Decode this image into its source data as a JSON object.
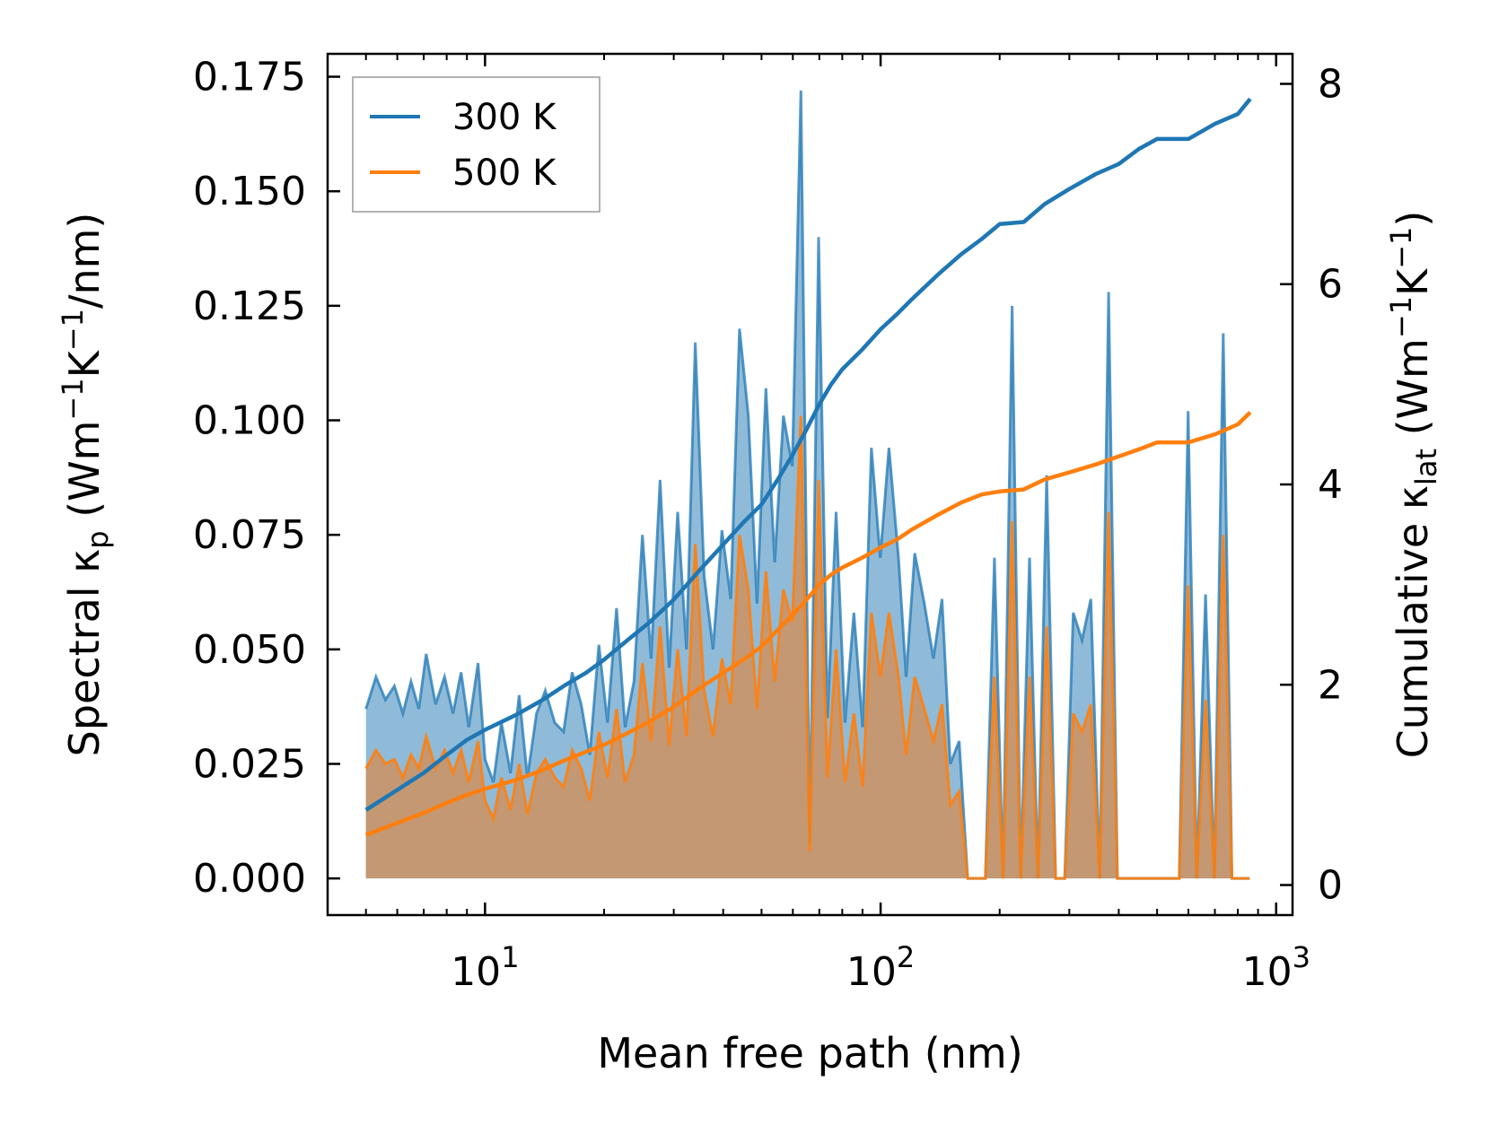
{
  "chart_data": {
    "type": "line",
    "title": "",
    "xlabel": "Mean free path (nm)",
    "ylabel": {
      "pre": "Spectral κ",
      "sub": "p",
      "post": " (Wm",
      "sup1": "−1",
      "mid": "K",
      "sup2": "−1",
      "end": "/nm)"
    },
    "y2label": {
      "pre": "Cumulative κ",
      "sub": "lat",
      "post": " (Wm",
      "sup1": "−1",
      "mid": "K",
      "sup2": "−1",
      "end": ")"
    },
    "xscale": "log",
    "xlim": [
      4.0,
      1100
    ],
    "ylim": [
      -0.008,
      0.18
    ],
    "y2lim": [
      -0.3,
      8.3
    ],
    "x_ticks": [
      {
        "value": 10,
        "base": "10",
        "exp": "1"
      },
      {
        "value": 100,
        "base": "10",
        "exp": "2"
      },
      {
        "value": 1000,
        "base": "10",
        "exp": "3"
      }
    ],
    "y_ticks": [
      {
        "value": 0.0,
        "label": "0.000"
      },
      {
        "value": 0.025,
        "label": "0.025"
      },
      {
        "value": 0.05,
        "label": "0.050"
      },
      {
        "value": 0.075,
        "label": "0.075"
      },
      {
        "value": 0.1,
        "label": "0.100"
      },
      {
        "value": 0.125,
        "label": "0.125"
      },
      {
        "value": 0.15,
        "label": "0.150"
      },
      {
        "value": 0.175,
        "label": "0.175"
      }
    ],
    "y2_ticks": [
      {
        "value": 0,
        "label": "0"
      },
      {
        "value": 2,
        "label": "2"
      },
      {
        "value": 4,
        "label": "4"
      },
      {
        "value": 6,
        "label": "6"
      },
      {
        "value": 8,
        "label": "8"
      }
    ],
    "legend_position": "top-left",
    "spectral_series": [
      {
        "name": "300 K",
        "color": "#1f77b4",
        "fill": "rgba(31,119,180,0.5)",
        "x": [
          5.0,
          5.3,
          5.6,
          5.9,
          6.2,
          6.5,
          6.8,
          7.1,
          7.5,
          7.9,
          8.3,
          8.7,
          9.1,
          9.6,
          10.0,
          10.5,
          11.0,
          11.6,
          12.2,
          12.8,
          13.5,
          14.2,
          15.0,
          15.8,
          16.6,
          17.5,
          18.4,
          19.4,
          20.4,
          21.5,
          22.6,
          23.8,
          25.0,
          26.3,
          27.7,
          29.2,
          30.7,
          32.3,
          34.0,
          35.8,
          37.7,
          39.7,
          41.8,
          44.0,
          46.3,
          48.7,
          51.3,
          54.0,
          56.8,
          59.8,
          62.9,
          66.2,
          69.7,
          73.4,
          77.2,
          81.3,
          85.6,
          90.1,
          94.8,
          99.8,
          105,
          111,
          116,
          122,
          129,
          136,
          143,
          150,
          158,
          166,
          175,
          184,
          194,
          204,
          215,
          226,
          238,
          250,
          263,
          277,
          292,
          307,
          323,
          340,
          358,
          377,
          397,
          418,
          440,
          463,
          488,
          513,
          540,
          569,
          599,
          630,
          663,
          698,
          735,
          773,
          814,
          857
        ],
        "y": [
          0.037,
          0.044,
          0.039,
          0.042,
          0.036,
          0.043,
          0.037,
          0.049,
          0.038,
          0.044,
          0.036,
          0.045,
          0.033,
          0.047,
          0.026,
          0.021,
          0.034,
          0.023,
          0.04,
          0.022,
          0.036,
          0.041,
          0.034,
          0.032,
          0.045,
          0.038,
          0.027,
          0.051,
          0.034,
          0.059,
          0.033,
          0.043,
          0.075,
          0.048,
          0.087,
          0.046,
          0.08,
          0.05,
          0.117,
          0.066,
          0.05,
          0.076,
          0.061,
          0.12,
          0.101,
          0.06,
          0.107,
          0.069,
          0.101,
          0.09,
          0.172,
          0.008,
          0.14,
          0.035,
          0.08,
          0.034,
          0.058,
          0.033,
          0.094,
          0.07,
          0.094,
          0.07,
          0.044,
          0.071,
          0.06,
          0.048,
          0.061,
          0.025,
          0.03,
          0.0,
          0.0,
          0.0,
          0.07,
          0.0,
          0.125,
          0.0,
          0.07,
          0.0,
          0.088,
          0.0,
          0.0,
          0.058,
          0.052,
          0.061,
          0.0,
          0.128,
          0.0,
          0.0,
          0.0,
          0.0,
          0.0,
          0.0,
          0.0,
          0.0,
          0.102,
          0.0,
          0.062,
          0.0,
          0.119,
          0.0,
          0.0,
          0.0
        ]
      },
      {
        "name": "500 K",
        "color": "#ff7f0e",
        "fill": "rgba(206,146,96,0.85)",
        "x": [
          5.0,
          5.3,
          5.6,
          5.9,
          6.2,
          6.5,
          6.8,
          7.1,
          7.5,
          7.9,
          8.3,
          8.7,
          9.1,
          9.6,
          10.0,
          10.5,
          11.0,
          11.6,
          12.2,
          12.8,
          13.5,
          14.2,
          15.0,
          15.8,
          16.6,
          17.5,
          18.4,
          19.4,
          20.4,
          21.5,
          22.6,
          23.8,
          25.0,
          26.3,
          27.7,
          29.2,
          30.7,
          32.3,
          34.0,
          35.8,
          37.7,
          39.7,
          41.8,
          44.0,
          46.3,
          48.7,
          51.3,
          54.0,
          56.8,
          59.8,
          62.9,
          66.2,
          69.7,
          73.4,
          77.2,
          81.3,
          85.6,
          90.1,
          94.8,
          99.8,
          105,
          111,
          116,
          122,
          129,
          136,
          143,
          150,
          158,
          166,
          175,
          184,
          194,
          204,
          215,
          226,
          238,
          250,
          263,
          277,
          292,
          307,
          323,
          340,
          358,
          377,
          397,
          418,
          440,
          463,
          488,
          513,
          540,
          569,
          599,
          630,
          663,
          698,
          735,
          773,
          814,
          857
        ],
        "y": [
          0.024,
          0.028,
          0.025,
          0.026,
          0.022,
          0.027,
          0.024,
          0.031,
          0.024,
          0.028,
          0.023,
          0.028,
          0.021,
          0.03,
          0.017,
          0.013,
          0.022,
          0.015,
          0.025,
          0.014,
          0.023,
          0.026,
          0.022,
          0.02,
          0.028,
          0.024,
          0.017,
          0.032,
          0.022,
          0.037,
          0.021,
          0.027,
          0.047,
          0.03,
          0.055,
          0.029,
          0.05,
          0.031,
          0.073,
          0.041,
          0.031,
          0.048,
          0.038,
          0.075,
          0.063,
          0.037,
          0.067,
          0.043,
          0.063,
          0.056,
          0.101,
          0.006,
          0.087,
          0.022,
          0.05,
          0.021,
          0.036,
          0.02,
          0.058,
          0.044,
          0.058,
          0.044,
          0.027,
          0.044,
          0.037,
          0.03,
          0.038,
          0.016,
          0.019,
          0.0,
          0.0,
          0.0,
          0.044,
          0.0,
          0.078,
          0.0,
          0.044,
          0.0,
          0.055,
          0.0,
          0.0,
          0.036,
          0.032,
          0.038,
          0.0,
          0.08,
          0.0,
          0.0,
          0.0,
          0.0,
          0.0,
          0.0,
          0.0,
          0.0,
          0.064,
          0.0,
          0.039,
          0.0,
          0.075,
          0.0,
          0.0,
          0.0
        ]
      }
    ],
    "cumulative_series": [
      {
        "name": "300 K",
        "color": "#1f77b4",
        "x": [
          5.0,
          6.0,
          7.0,
          8.0,
          9.0,
          10.0,
          12.0,
          14.0,
          16.0,
          18.0,
          20.0,
          23.0,
          26.0,
          30.0,
          35.0,
          40.0,
          45.0,
          50.0,
          55.0,
          60.0,
          65.0,
          70.0,
          75.0,
          80.0,
          90.0,
          100.0,
          110.0,
          120.0,
          140.0,
          160.0,
          180.0,
          200.0,
          230.0,
          260.0,
          300.0,
          350.0,
          400.0,
          450.0,
          500.0,
          600.0,
          700.0,
          800.0,
          860.0
        ],
        "y": [
          0.75,
          0.95,
          1.12,
          1.3,
          1.45,
          1.55,
          1.7,
          1.85,
          2.0,
          2.12,
          2.25,
          2.45,
          2.62,
          2.85,
          3.15,
          3.4,
          3.62,
          3.8,
          4.05,
          4.3,
          4.55,
          4.8,
          5.0,
          5.15,
          5.35,
          5.55,
          5.7,
          5.85,
          6.1,
          6.3,
          6.45,
          6.6,
          6.62,
          6.8,
          6.95,
          7.1,
          7.2,
          7.35,
          7.45,
          7.45,
          7.6,
          7.7,
          7.85
        ]
      },
      {
        "name": "500 K",
        "color": "#ff7f0e",
        "x": [
          5.0,
          6.0,
          7.0,
          8.0,
          9.0,
          10.0,
          12.0,
          14.0,
          16.0,
          18.0,
          20.0,
          23.0,
          26.0,
          30.0,
          35.0,
          40.0,
          45.0,
          50.0,
          55.0,
          60.0,
          65.0,
          70.0,
          75.0,
          80.0,
          90.0,
          100.0,
          110.0,
          120.0,
          140.0,
          160.0,
          180.0,
          200.0,
          230.0,
          260.0,
          300.0,
          350.0,
          400.0,
          450.0,
          500.0,
          600.0,
          700.0,
          800.0,
          860.0
        ],
        "y": [
          0.5,
          0.62,
          0.72,
          0.82,
          0.9,
          0.96,
          1.05,
          1.15,
          1.25,
          1.33,
          1.4,
          1.52,
          1.63,
          1.78,
          1.97,
          2.12,
          2.25,
          2.38,
          2.55,
          2.7,
          2.85,
          3.0,
          3.1,
          3.17,
          3.27,
          3.37,
          3.45,
          3.55,
          3.7,
          3.82,
          3.9,
          3.93,
          3.95,
          4.05,
          4.12,
          4.2,
          4.28,
          4.35,
          4.42,
          4.42,
          4.5,
          4.6,
          4.72
        ]
      }
    ],
    "legend": [
      {
        "label": "300 K",
        "color": "#1f77b4"
      },
      {
        "label": "500 K",
        "color": "#ff7f0e"
      }
    ]
  }
}
